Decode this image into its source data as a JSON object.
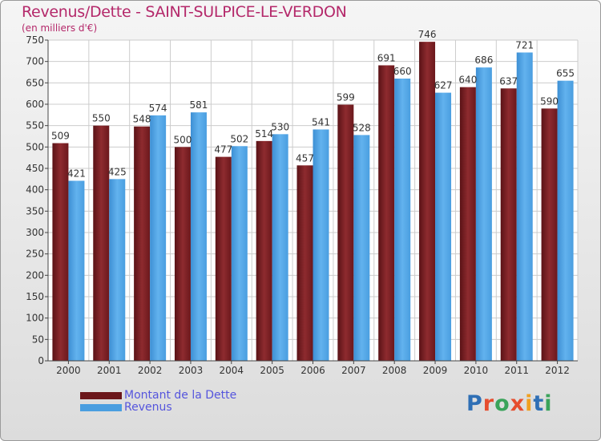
{
  "title": "Revenus/Dette - SAINT-SULPICE-LE-VERDON",
  "subtitle": "(en milliers d'€)",
  "logo": {
    "text": "Proxiti",
    "letter_colors": [
      "#2f6fb5",
      "#e64d2e",
      "#3aa35a",
      "#e64d2e",
      "#f0a020",
      "#2f6fb5",
      "#3aa35a"
    ]
  },
  "chart_data": {
    "type": "bar",
    "title": "Revenus/Dette - SAINT-SULPICE-LE-VERDON",
    "subtitle": "(en milliers d'€)",
    "categories": [
      "2000",
      "2001",
      "2002",
      "2003",
      "2004",
      "2005",
      "2006",
      "2007",
      "2008",
      "2009",
      "2010",
      "2011",
      "2012"
    ],
    "series": [
      {
        "name": "Montant de la Dette",
        "color": "#7a1f24",
        "values": [
          509,
          550,
          548,
          500,
          477,
          514,
          457,
          599,
          691,
          746,
          640,
          637,
          590
        ]
      },
      {
        "name": "Revenus",
        "color": "#4a9ee0",
        "values": [
          421,
          425,
          574,
          581,
          502,
          530,
          541,
          528,
          660,
          627,
          686,
          721,
          655
        ]
      }
    ],
    "ylim": [
      0,
      750
    ],
    "yticks": [
      0,
      50,
      100,
      150,
      200,
      250,
      300,
      350,
      400,
      450,
      500,
      550,
      600,
      650,
      700,
      750
    ],
    "grid": true,
    "legend_position": "bottom-left"
  }
}
